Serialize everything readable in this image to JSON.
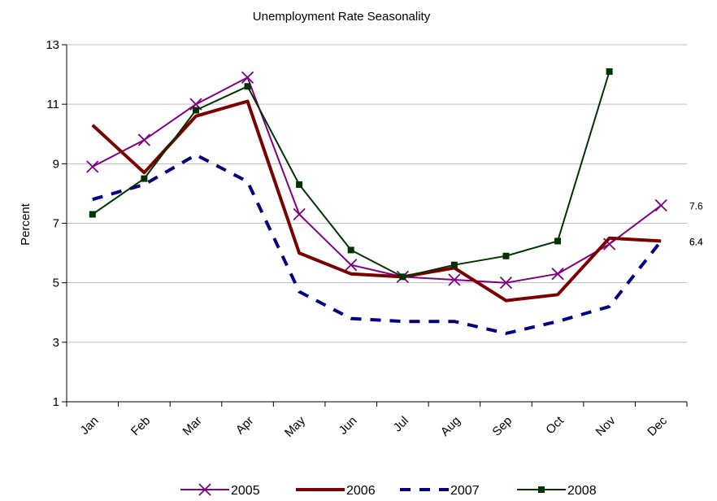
{
  "chart_data": {
    "type": "line",
    "title": "Unemployment Rate Seasonality",
    "xlabel": "",
    "ylabel": "Percent",
    "ylim": [
      1,
      13
    ],
    "yticks": [
      "1",
      "3",
      "5",
      "7",
      "9",
      "11",
      "13"
    ],
    "categories": [
      "Jan",
      "Feb",
      "Mar",
      "Apr",
      "May",
      "Jun",
      "Jul",
      "Aug",
      "Sep",
      "Oct",
      "Nov",
      "Dec"
    ],
    "grid": "horizontal",
    "legend_position": "bottom",
    "series": [
      {
        "name": "2005",
        "color": "#800080",
        "style": "solid-x-marker",
        "values": [
          8.9,
          9.8,
          11.0,
          11.9,
          7.3,
          5.6,
          5.2,
          5.1,
          5.0,
          5.3,
          6.3,
          7.6
        ]
      },
      {
        "name": "2006",
        "color": "#7b0000",
        "style": "thick-solid",
        "values": [
          10.3,
          8.7,
          10.6,
          11.1,
          6.0,
          5.3,
          5.2,
          5.5,
          4.4,
          4.6,
          6.5,
          6.4
        ]
      },
      {
        "name": "2007",
        "color": "#000080",
        "style": "dashed",
        "values": [
          7.8,
          8.3,
          9.3,
          8.4,
          4.7,
          3.8,
          3.7,
          3.7,
          3.3,
          3.7,
          4.2,
          6.4
        ]
      },
      {
        "name": "2008",
        "color": "#003300",
        "style": "solid-square-marker",
        "values": [
          7.3,
          8.5,
          10.8,
          11.6,
          8.3,
          6.1,
          5.2,
          5.6,
          5.9,
          6.4,
          12.1,
          null
        ]
      }
    ],
    "end_labels": [
      {
        "series": "2005",
        "text": "7.6",
        "value": 7.6
      },
      {
        "series": "2006",
        "text": "6.4",
        "value": 6.4
      },
      {
        "series": "2007",
        "text": "6.4",
        "value": 6.4
      }
    ]
  }
}
